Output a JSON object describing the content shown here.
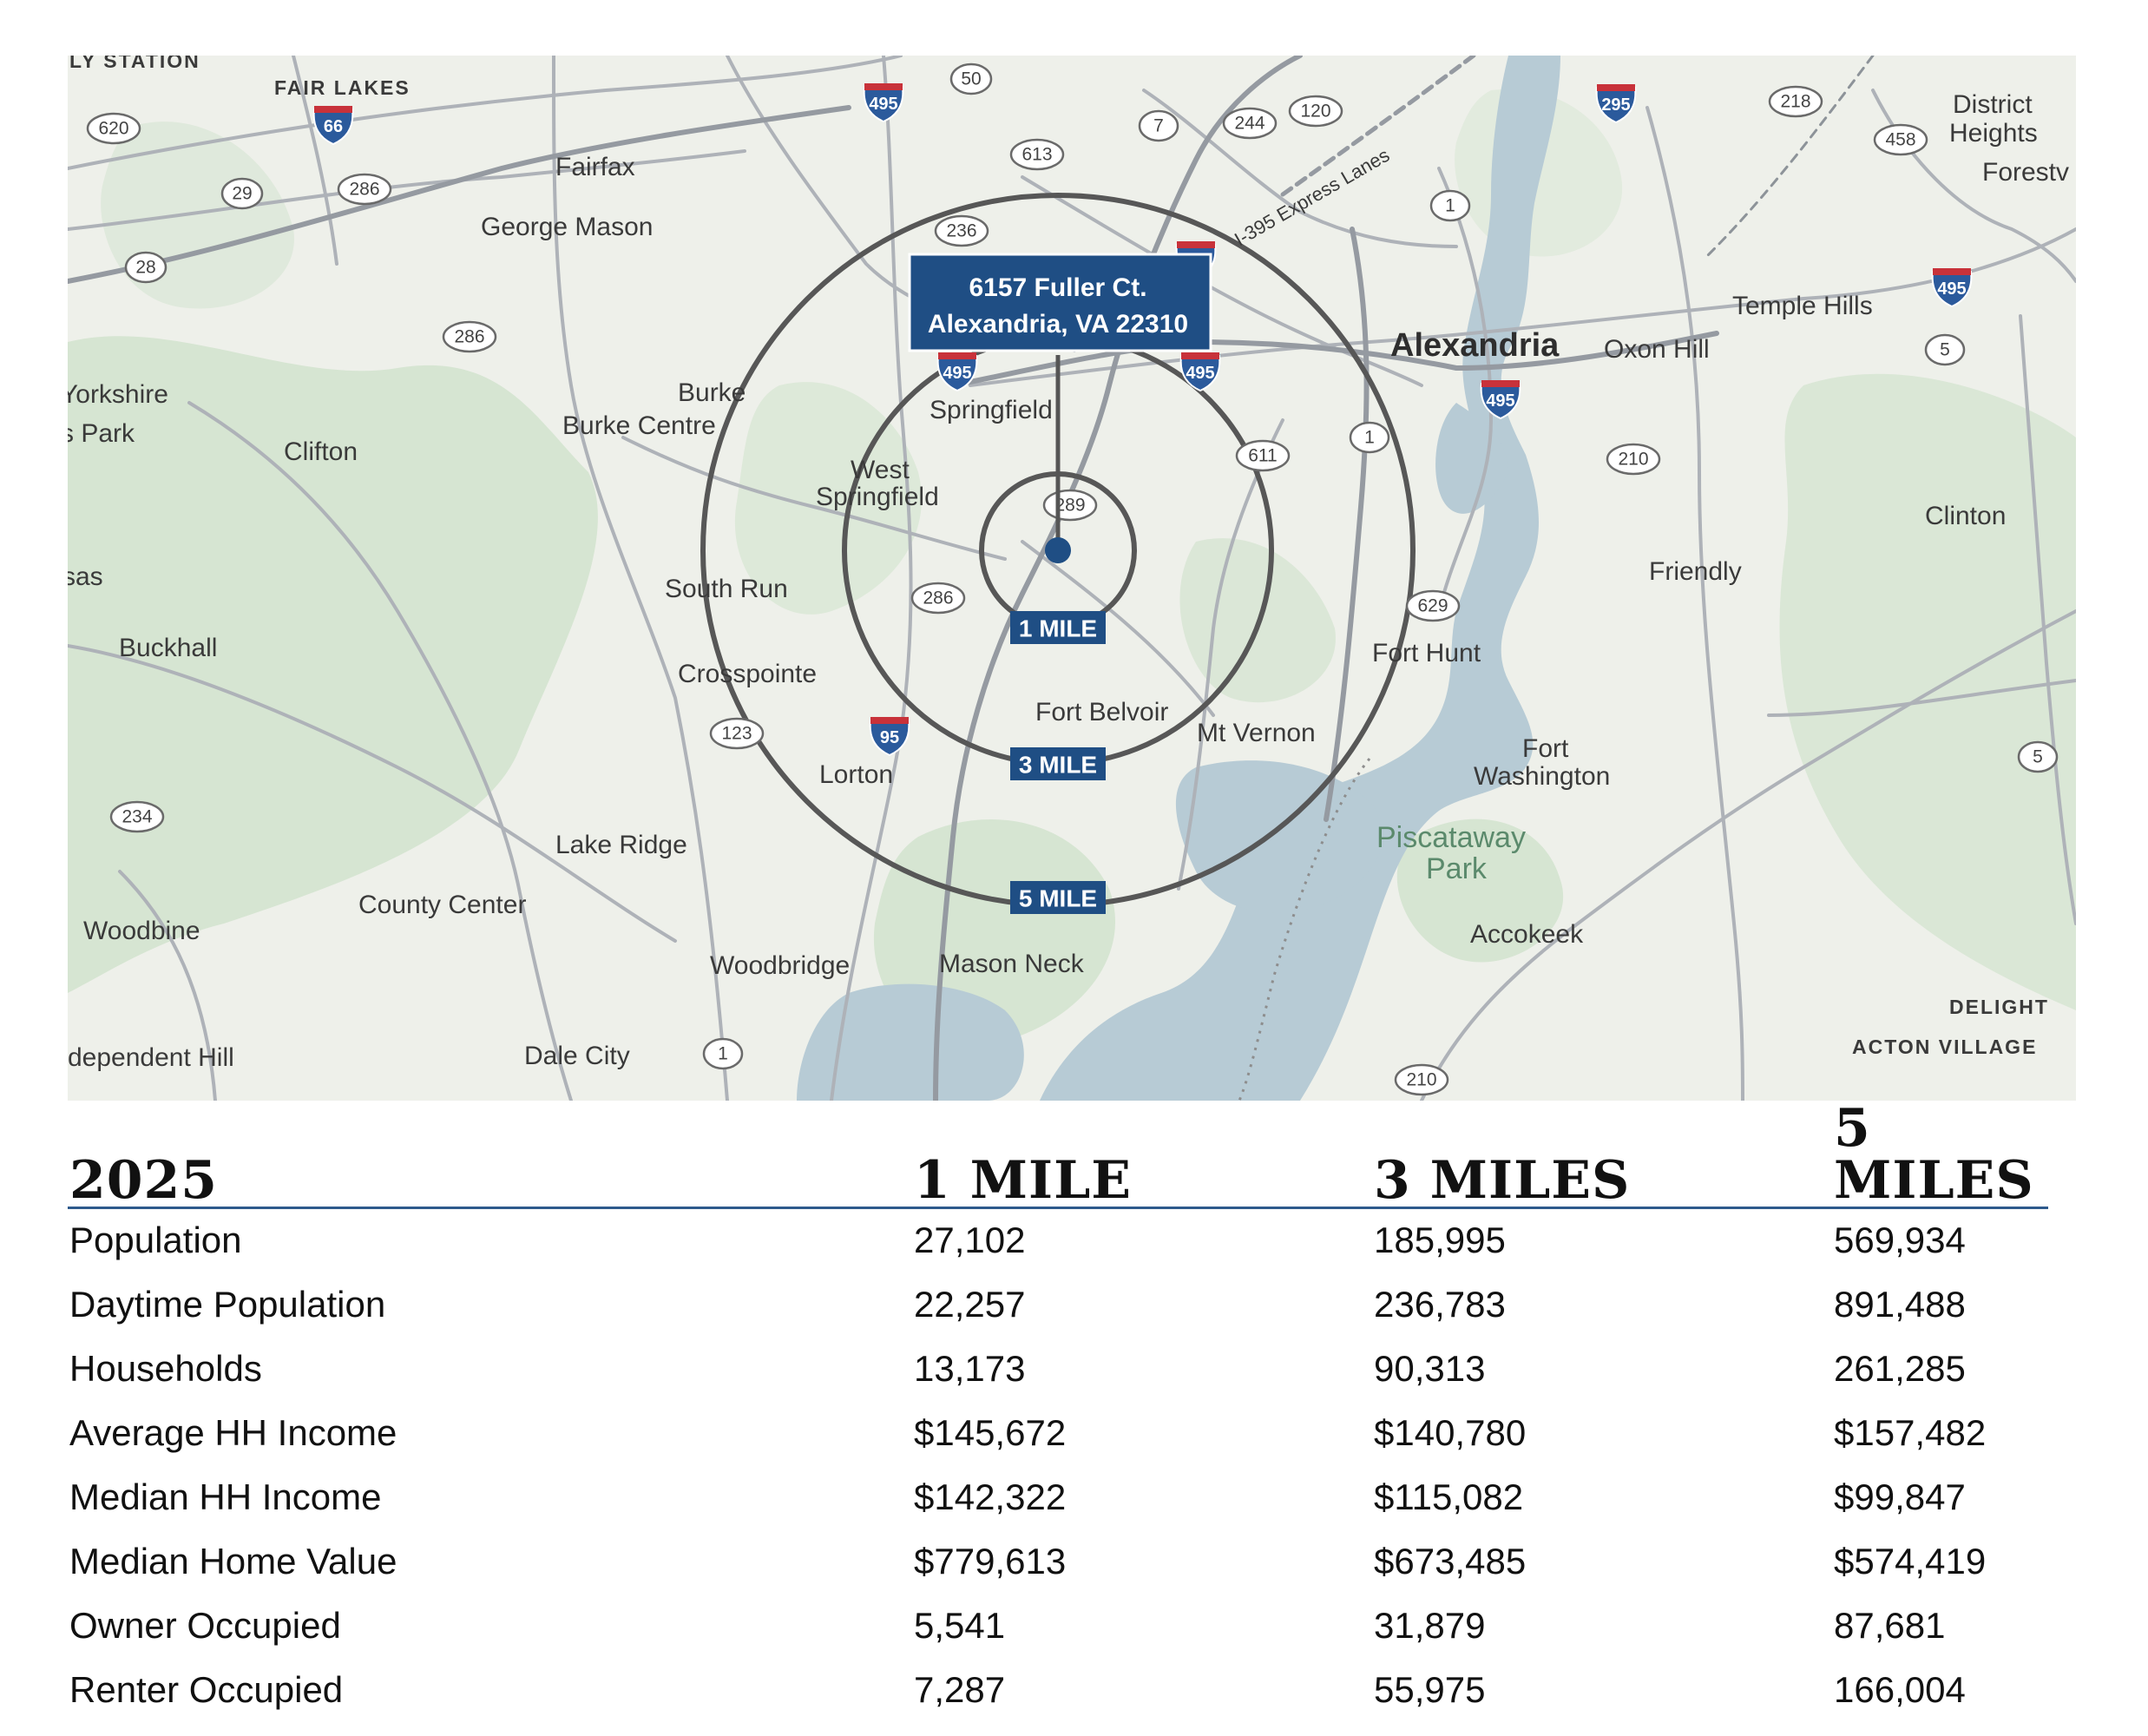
{
  "map": {
    "place_labels": [
      {
        "text": "LY STATION",
        "style": "sm"
      },
      {
        "text": "FAIR LAKES",
        "style": "sm"
      },
      {
        "text": "Fairfax",
        "style": "md"
      },
      {
        "text": "George Mason",
        "style": "md"
      },
      {
        "text": "Yorkshire",
        "style": "md"
      },
      {
        "text": "s Park",
        "style": "md"
      },
      {
        "text": "Clifton",
        "style": "md"
      },
      {
        "text": "Burke",
        "style": "md"
      },
      {
        "text": "Burke Centre",
        "style": "md"
      },
      {
        "text": "West",
        "style": "md"
      },
      {
        "text": "Springfield",
        "style": "md"
      },
      {
        "text": "Springfield",
        "style": "md"
      },
      {
        "text": "sas",
        "style": "md"
      },
      {
        "text": "South Run",
        "style": "md"
      },
      {
        "text": "Buckhall",
        "style": "md"
      },
      {
        "text": "Crosspointe",
        "style": "md"
      },
      {
        "text": "Fort Belvoir",
        "style": "md"
      },
      {
        "text": "Mt Vernon",
        "style": "md"
      },
      {
        "text": "Lorton",
        "style": "md"
      },
      {
        "text": "Lake Ridge",
        "style": "md"
      },
      {
        "text": "County Center",
        "style": "md"
      },
      {
        "text": "Woodbine",
        "style": "md"
      },
      {
        "text": "Woodbridge",
        "style": "md"
      },
      {
        "text": "Mason Neck",
        "style": "md"
      },
      {
        "text": "dependent Hill",
        "style": "md"
      },
      {
        "text": "Dale City",
        "style": "md"
      },
      {
        "text": "Alexandria",
        "style": "lg"
      },
      {
        "text": "Oxon Hill",
        "style": "md"
      },
      {
        "text": "Temple Hills",
        "style": "md"
      },
      {
        "text": "District",
        "style": "md"
      },
      {
        "text": "Heights",
        "style": "md"
      },
      {
        "text": "Forestv",
        "style": "md"
      },
      {
        "text": "Clinton",
        "style": "md"
      },
      {
        "text": "Friendly",
        "style": "md"
      },
      {
        "text": "Fort Hunt",
        "style": "md"
      },
      {
        "text": "Fort",
        "style": "md"
      },
      {
        "text": "Washington",
        "style": "md"
      },
      {
        "text": "Piscataway",
        "style": "park"
      },
      {
        "text": "Park",
        "style": "park"
      },
      {
        "text": "Accokeek",
        "style": "md"
      },
      {
        "text": "DELIGHT",
        "style": "sm"
      },
      {
        "text": "ACTON VILLAGE",
        "style": "sm"
      },
      {
        "text": "I-395 Express Lanes",
        "style": "road"
      }
    ],
    "route_shields": [
      "620",
      "29",
      "286",
      "28",
      "286",
      "50",
      "613",
      "7",
      "244",
      "120",
      "236",
      "218",
      "458",
      "1",
      "5",
      "210",
      "611",
      "289",
      "286",
      "629",
      "123",
      "234",
      "1",
      "210",
      "5",
      "1"
    ],
    "interstate_shields": [
      "66",
      "495",
      "295",
      "495",
      "495",
      "495",
      "495",
      "95",
      "495"
    ],
    "callout_line1": "6157 Fuller Ct.",
    "callout_line2": "Alexandria, VA 22310",
    "ring_labels": [
      "1 MILE",
      "3 MILE",
      "5 MILE"
    ],
    "colors": {
      "water": "#b7cbd5",
      "land": "#eef0ea",
      "park": "#d3e3d0",
      "road": "#a9adb3",
      "ring": "#575757",
      "label_bg": "#1f4e84"
    }
  },
  "table": {
    "headers": [
      "2025",
      "1 MILE",
      "3 MILES",
      "5 MILES"
    ],
    "rows": [
      {
        "label": "Population",
        "values": [
          "27,102",
          "185,995",
          "569,934"
        ]
      },
      {
        "label": "Daytime Population",
        "values": [
          "22,257",
          "236,783",
          "891,488"
        ]
      },
      {
        "label": "Households",
        "values": [
          "13,173",
          "90,313",
          "261,285"
        ]
      },
      {
        "label": "Average HH Income",
        "values": [
          "$145,672",
          "$140,780",
          "$157,482"
        ]
      },
      {
        "label": "Median HH Income",
        "values": [
          "$142,322",
          "$115,082",
          "$99,847"
        ]
      },
      {
        "label": "Median Home Value",
        "values": [
          "$779,613",
          "$673,485",
          "$574,419"
        ]
      },
      {
        "label": "Owner Occupied",
        "values": [
          "5,541",
          "31,879",
          "87,681"
        ]
      },
      {
        "label": "Renter Occupied",
        "values": [
          "7,287",
          "55,975",
          "166,004"
        ]
      }
    ]
  }
}
